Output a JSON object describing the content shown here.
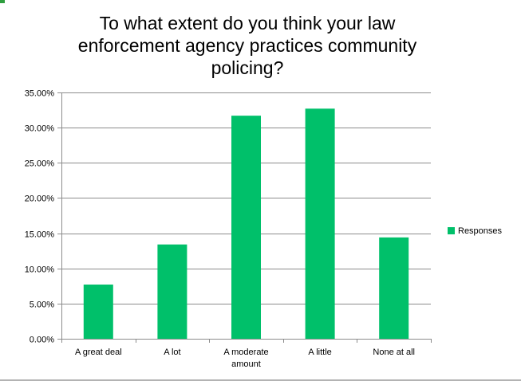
{
  "chart_data": {
    "type": "bar",
    "title_lines": [
      "To what extent do you think your law",
      "enforcement agency practices community",
      "policing?"
    ],
    "categories": [
      [
        "A great deal"
      ],
      [
        "A lot"
      ],
      [
        "A moderate",
        "amount"
      ],
      [
        "A little"
      ],
      [
        "None at all"
      ]
    ],
    "series": [
      {
        "name": "Responses",
        "values": [
          0.077,
          0.134,
          0.317,
          0.327,
          0.144
        ],
        "color": "#00c06a"
      }
    ],
    "y_ticks": [
      "0.00%",
      "5.00%",
      "10.00%",
      "15.00%",
      "20.00%",
      "25.00%",
      "30.00%",
      "35.00%"
    ],
    "ylim": [
      0,
      0.35
    ],
    "grid": true,
    "legend_position": "right"
  },
  "colors": {
    "bar": "#00c06a",
    "gridline": "#8c8c8c",
    "axis": "#8c8c8c",
    "frame_accent": "#2e9e3f"
  }
}
